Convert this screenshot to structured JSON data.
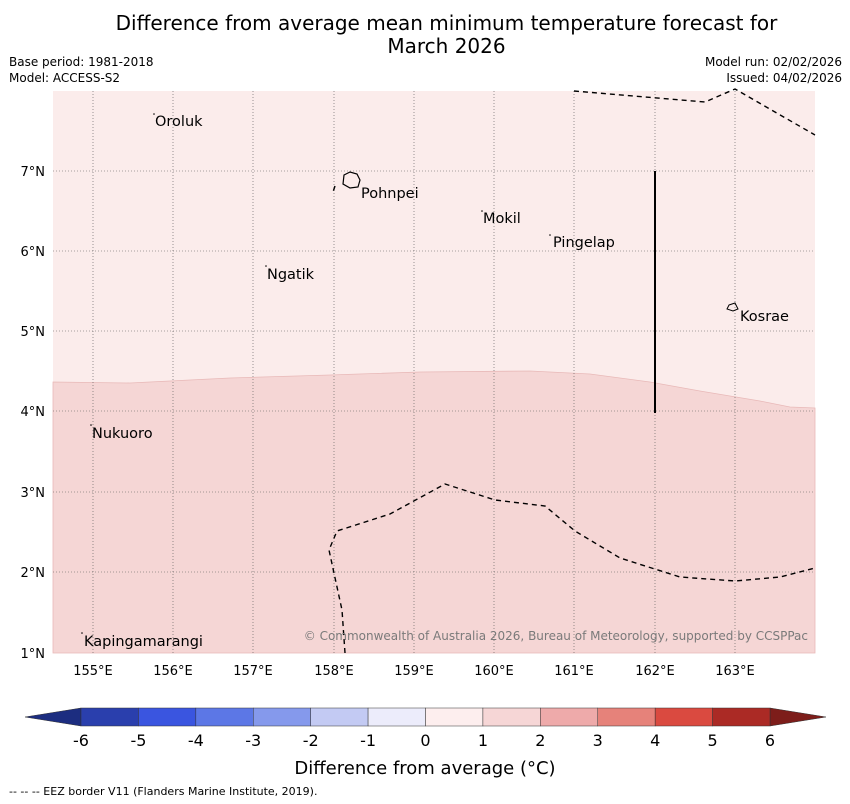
{
  "title_line1": "Difference from average mean minimum temperature forecast for",
  "title_line2": "March 2026",
  "base_period": "Base period: 1981-2018",
  "model": "Model: ACCESS-S2",
  "model_run": "Model run: 02/02/2026",
  "issued": "Issued: 04/02/2026",
  "lat_labels": [
    "7°N",
    "6°N",
    "5°N",
    "4°N",
    "3°N",
    "2°N",
    "1°N"
  ],
  "lon_labels": [
    "155°E",
    "156°E",
    "157°E",
    "158°E",
    "159°E",
    "160°E",
    "161°E",
    "162°E",
    "163°E"
  ],
  "places": [
    "Oroluk",
    "Pohnpei",
    "Mokil",
    "Pingelap",
    "Ngatik",
    "Kosrae",
    "Nukuoro",
    "Kapingamarangi"
  ],
  "copyright": "© Commonwealth of Australia 2026, Bureau of Meteorology, supported by CCSPPac",
  "colorbar": {
    "ticks": [
      "-6",
      "-5",
      "-4",
      "-3",
      "-2",
      "-1",
      "0",
      "1",
      "2",
      "3",
      "4",
      "5",
      "6"
    ],
    "colors": [
      "#2a3fad",
      "#3a55e0",
      "#5c77e6",
      "#8599ec",
      "#c3caf3",
      "#ececfb",
      "#fdeeee",
      "#f6d6d6",
      "#eeaaaa",
      "#e6827a",
      "#da4a40",
      "#ab2a25"
    ],
    "under_color": "#1c2d80",
    "over_color": "#7d1d1a",
    "label": "Difference from average (°C)"
  },
  "footer": "-- -- -- EEZ border V11 (Flanders Marine Institute, 2019).",
  "region_colors": {
    "zone_0_1": "#fbeceb",
    "zone_1_2": "#f5d6d5"
  }
}
